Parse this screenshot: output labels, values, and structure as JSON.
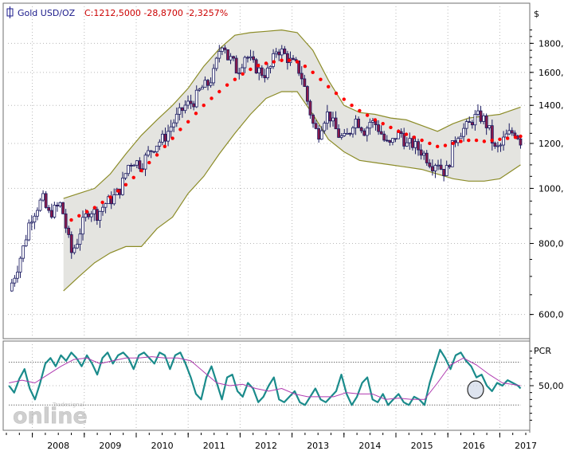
{
  "header": {
    "instrument": "Gold USD/OZ",
    "close_text": "C:1212,5000 -28,8700 -2,3257%"
  },
  "watermark": {
    "text": "online",
    "small_text": "Tradesignal"
  },
  "colors": {
    "frame": "#6f6f6f",
    "candle_up": "#ffffff",
    "candle_down": "#8b1a4a",
    "candle_outline": "#1a1a60",
    "band_fill": "#e4e4e0",
    "band_line": "#8c8c28",
    "sar_dot": "#ff0000",
    "pcr_line": "#1a8b8b",
    "pcr_signal": "#b03ab0",
    "header_red": "#cc0000",
    "header_blue": "#1a1a8b"
  },
  "chart_data": [
    {
      "type": "candlestick",
      "title": "Gold USD/OZ",
      "y_unit": "$",
      "scale": "log",
      "ylim": [
        560,
        1960
      ],
      "y_ticks": [
        {
          "value": 600,
          "label": "600,0"
        },
        {
          "value": 800,
          "label": "800,0"
        },
        {
          "value": 1000,
          "label": "1000,"
        },
        {
          "value": 1200,
          "label": "1200,"
        },
        {
          "value": 1400,
          "label": "1400,"
        },
        {
          "value": 1600,
          "label": "1600,"
        },
        {
          "value": 1800,
          "label": "1800,"
        }
      ],
      "x_range": [
        2007.5,
        2017.5
      ],
      "x_ticks": [
        {
          "value": 2008,
          "label": "2008"
        },
        {
          "value": 2009,
          "label": "2009"
        },
        {
          "value": 2010,
          "label": "2010"
        },
        {
          "value": 2011,
          "label": "2011"
        },
        {
          "value": 2012,
          "label": "2012"
        },
        {
          "value": 2013,
          "label": "2013"
        },
        {
          "value": 2014,
          "label": "2014"
        },
        {
          "value": 2015,
          "label": "2015"
        },
        {
          "value": 2016,
          "label": "2016"
        },
        {
          "value": 2017,
          "label": "2017"
        }
      ],
      "close_path": [
        [
          2007.55,
          660
        ],
        [
          2007.7,
          720
        ],
        [
          2007.85,
          800
        ],
        [
          2007.95,
          880
        ],
        [
          2008.1,
          930
        ],
        [
          2008.2,
          960
        ],
        [
          2008.3,
          900
        ],
        [
          2008.45,
          920
        ],
        [
          2008.55,
          940
        ],
        [
          2008.65,
          850
        ],
        [
          2008.75,
          770
        ],
        [
          2008.85,
          800
        ],
        [
          2008.95,
          860
        ],
        [
          2009.1,
          920
        ],
        [
          2009.25,
          900
        ],
        [
          2009.4,
          940
        ],
        [
          2009.55,
          960
        ],
        [
          2009.7,
          1000
        ],
        [
          2009.85,
          1100
        ],
        [
          2009.95,
          1120
        ],
        [
          2010.1,
          1100
        ],
        [
          2010.25,
          1160
        ],
        [
          2010.4,
          1200
        ],
        [
          2010.55,
          1230
        ],
        [
          2010.7,
          1300
        ],
        [
          2010.85,
          1360
        ],
        [
          2010.95,
          1400
        ],
        [
          2011.1,
          1420
        ],
        [
          2011.25,
          1500
        ],
        [
          2011.4,
          1530
        ],
        [
          2011.5,
          1600
        ],
        [
          2011.6,
          1750
        ],
        [
          2011.68,
          1830
        ],
        [
          2011.75,
          1700
        ],
        [
          2011.85,
          1680
        ],
        [
          2011.95,
          1600
        ],
        [
          2012.1,
          1720
        ],
        [
          2012.25,
          1650
        ],
        [
          2012.4,
          1600
        ],
        [
          2012.5,
          1590
        ],
        [
          2012.6,
          1640
        ],
        [
          2012.7,
          1760
        ],
        [
          2012.8,
          1740
        ],
        [
          2012.9,
          1700
        ],
        [
          2013.0,
          1660
        ],
        [
          2013.1,
          1640
        ],
        [
          2013.2,
          1560
        ],
        [
          2013.3,
          1420
        ],
        [
          2013.4,
          1300
        ],
        [
          2013.5,
          1240
        ],
        [
          2013.6,
          1320
        ],
        [
          2013.7,
          1360
        ],
        [
          2013.8,
          1290
        ],
        [
          2013.9,
          1240
        ],
        [
          2014.0,
          1220
        ],
        [
          2014.1,
          1250
        ],
        [
          2014.2,
          1330
        ],
        [
          2014.3,
          1300
        ],
        [
          2014.4,
          1260
        ],
        [
          2014.5,
          1310
        ],
        [
          2014.6,
          1300
        ],
        [
          2014.7,
          1260
        ],
        [
          2014.8,
          1200
        ],
        [
          2014.9,
          1190
        ],
        [
          2015.0,
          1240
        ],
        [
          2015.1,
          1250
        ],
        [
          2015.2,
          1190
        ],
        [
          2015.3,
          1200
        ],
        [
          2015.4,
          1180
        ],
        [
          2015.5,
          1160
        ],
        [
          2015.6,
          1130
        ],
        [
          2015.7,
          1100
        ],
        [
          2015.8,
          1120
        ],
        [
          2015.9,
          1070
        ],
        [
          2016.0,
          1080
        ],
        [
          2016.1,
          1200
        ],
        [
          2016.2,
          1250
        ],
        [
          2016.3,
          1270
        ],
        [
          2016.4,
          1290
        ],
        [
          2016.5,
          1330
        ],
        [
          2016.6,
          1340
        ],
        [
          2016.7,
          1320
        ],
        [
          2016.8,
          1260
        ],
        [
          2016.9,
          1170
        ],
        [
          2017.0,
          1180
        ],
        [
          2017.1,
          1230
        ],
        [
          2017.2,
          1250
        ],
        [
          2017.3,
          1260
        ],
        [
          2017.4,
          1212
        ]
      ],
      "band": {
        "x": [
          2008.6,
          2008.9,
          2009.2,
          2009.5,
          2009.8,
          2010.1,
          2010.4,
          2010.7,
          2011.0,
          2011.3,
          2011.6,
          2011.9,
          2012.2,
          2012.5,
          2012.8,
          2013.1,
          2013.4,
          2013.7,
          2014.0,
          2014.3,
          2014.6,
          2014.9,
          2015.2,
          2015.5,
          2015.8,
          2016.1,
          2016.4,
          2016.7,
          2017.0,
          2017.4
        ],
        "upper": [
          960,
          980,
          1000,
          1060,
          1150,
          1240,
          1320,
          1400,
          1500,
          1640,
          1760,
          1860,
          1880,
          1890,
          1900,
          1880,
          1750,
          1550,
          1400,
          1360,
          1350,
          1330,
          1320,
          1290,
          1260,
          1300,
          1330,
          1340,
          1350,
          1390
        ],
        "lower": [
          660,
          700,
          740,
          770,
          790,
          790,
          850,
          890,
          980,
          1050,
          1150,
          1250,
          1350,
          1440,
          1480,
          1480,
          1350,
          1220,
          1160,
          1120,
          1110,
          1100,
          1090,
          1080,
          1060,
          1040,
          1030,
          1030,
          1040,
          1100
        ]
      },
      "sar": {
        "x": [
          2008.75,
          2008.9,
          2009.05,
          2009.2,
          2009.35,
          2009.5,
          2009.65,
          2009.8,
          2009.95,
          2010.1,
          2010.25,
          2010.4,
          2010.55,
          2010.7,
          2010.85,
          2011.0,
          2011.15,
          2011.3,
          2011.45,
          2011.6,
          2011.75,
          2011.9,
          2012.05,
          2012.2,
          2012.35,
          2012.5,
          2012.65,
          2012.8,
          2012.95,
          2013.1,
          2013.25,
          2013.4,
          2013.55,
          2013.7,
          2013.85,
          2014.0,
          2014.15,
          2014.3,
          2014.45,
          2014.6,
          2014.75,
          2014.9,
          2015.05,
          2015.2,
          2015.35,
          2015.5,
          2015.65,
          2015.8,
          2015.95,
          2016.1,
          2016.25,
          2016.4,
          2016.55,
          2016.7,
          2016.85,
          2017.0,
          2017.15,
          2017.3,
          2017.4
        ],
        "y": [
          880,
          895,
          910,
          925,
          945,
          965,
          990,
          1015,
          1045,
          1075,
          1110,
          1145,
          1185,
          1225,
          1270,
          1310,
          1355,
          1400,
          1440,
          1480,
          1520,
          1555,
          1590,
          1620,
          1645,
          1660,
          1670,
          1680,
          1680,
          1670,
          1640,
          1600,
          1555,
          1510,
          1470,
          1435,
          1400,
          1370,
          1345,
          1320,
          1300,
          1280,
          1260,
          1245,
          1230,
          1215,
          1200,
          1185,
          1190,
          1200,
          1210,
          1215,
          1215,
          1210,
          1215,
          1220,
          1225,
          1230,
          1235
        ]
      }
    },
    {
      "type": "line",
      "title": "PCR",
      "ylim": [
        20,
        80
      ],
      "y_ticks": [
        {
          "value": 50,
          "label": "50,00"
        }
      ],
      "reference_lines": [
        67,
        36
      ],
      "series": [
        {
          "name": "",
          "x": [
            2007.55,
            2007.65,
            2007.75,
            2007.85,
            2007.95,
            2008.05,
            2008.15,
            2008.25,
            2008.35,
            2008.45,
            2008.55,
            2008.65,
            2008.75,
            2008.85,
            2008.95,
            2009.05,
            2009.15,
            2009.25,
            2009.35,
            2009.45,
            2009.55,
            2009.65,
            2009.75,
            2009.85,
            2009.95,
            2010.05,
            2010.15,
            2010.25,
            2010.35,
            2010.45,
            2010.55,
            2010.65,
            2010.75,
            2010.85,
            2010.95,
            2011.05,
            2011.15,
            2011.25,
            2011.35,
            2011.45,
            2011.55,
            2011.65,
            2011.75,
            2011.85,
            2011.95,
            2012.05,
            2012.15,
            2012.25,
            2012.35,
            2012.45,
            2012.55,
            2012.65,
            2012.75,
            2012.85,
            2012.95,
            2013.05,
            2013.15,
            2013.25,
            2013.35,
            2013.45,
            2013.55,
            2013.65,
            2013.75,
            2013.85,
            2013.95,
            2014.05,
            2014.15,
            2014.25,
            2014.35,
            2014.45,
            2014.55,
            2014.65,
            2014.75,
            2014.85,
            2014.95,
            2015.05,
            2015.15,
            2015.25,
            2015.35,
            2015.45,
            2015.55,
            2015.65,
            2015.75,
            2015.85,
            2015.95,
            2016.05,
            2016.15,
            2016.25,
            2016.35,
            2016.45,
            2016.55,
            2016.65,
            2016.75,
            2016.85,
            2016.95,
            2017.05,
            2017.15,
            2017.25,
            2017.35,
            2017.4
          ],
          "y": [
            50,
            45,
            55,
            62,
            48,
            40,
            52,
            66,
            70,
            64,
            72,
            68,
            74,
            70,
            64,
            72,
            66,
            58,
            70,
            74,
            66,
            72,
            74,
            70,
            62,
            72,
            74,
            70,
            66,
            74,
            72,
            62,
            72,
            74,
            66,
            56,
            44,
            40,
            56,
            64,
            52,
            40,
            56,
            58,
            46,
            42,
            52,
            48,
            38,
            42,
            50,
            56,
            40,
            38,
            42,
            46,
            38,
            36,
            42,
            48,
            40,
            38,
            42,
            46,
            58,
            44,
            36,
            42,
            52,
            56,
            40,
            38,
            44,
            36,
            40,
            44,
            38,
            36,
            42,
            40,
            36,
            52,
            64,
            76,
            70,
            62,
            72,
            74,
            68,
            64,
            56,
            58,
            50,
            46,
            52,
            50,
            54,
            52,
            50,
            48
          ]
        },
        {
          "name": "",
          "x": [
            2007.55,
            2007.8,
            2008.05,
            2008.3,
            2008.55,
            2008.8,
            2009.05,
            2009.3,
            2009.55,
            2009.8,
            2010.05,
            2010.3,
            2010.55,
            2010.8,
            2011.05,
            2011.3,
            2011.55,
            2011.8,
            2012.05,
            2012.3,
            2012.55,
            2012.8,
            2013.05,
            2013.3,
            2013.55,
            2013.8,
            2014.05,
            2014.3,
            2014.55,
            2014.8,
            2015.05,
            2015.3,
            2015.55,
            2015.8,
            2016.05,
            2016.3,
            2016.55,
            2016.8,
            2017.05,
            2017.4
          ],
          "y": [
            52,
            54,
            52,
            58,
            64,
            69,
            70,
            66,
            68,
            70,
            70,
            71,
            70,
            70,
            68,
            60,
            52,
            50,
            51,
            48,
            46,
            48,
            44,
            42,
            42,
            42,
            45,
            44,
            44,
            40,
            41,
            40,
            40,
            52,
            65,
            70,
            65,
            58,
            52,
            50
          ]
        }
      ]
    }
  ],
  "axis_labels": {
    "price_unit": "$",
    "pcr_label": "PCR"
  }
}
